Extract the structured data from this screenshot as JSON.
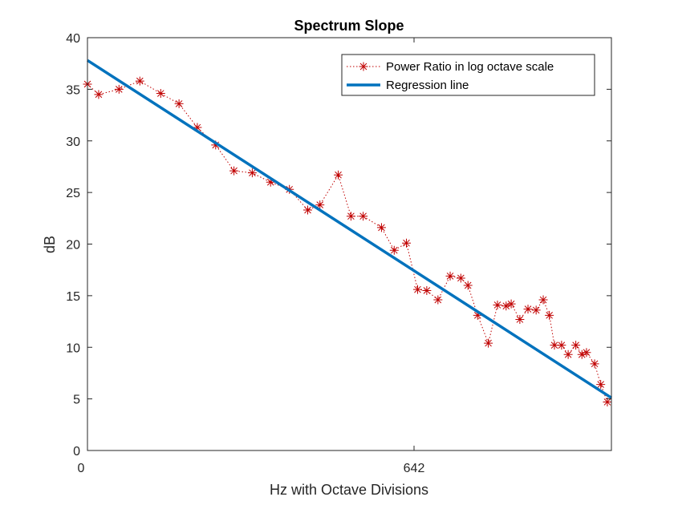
{
  "chart_data": {
    "type": "line",
    "title": "Spectrum Slope",
    "xlabel": "Hz with Octave Divisions",
    "ylabel": "dB",
    "xlim": [
      0,
      1030
    ],
    "ylim": [
      0,
      40
    ],
    "xticks": [
      {
        "value": 0,
        "label": "0"
      },
      {
        "value": 642,
        "label": "642"
      }
    ],
    "yticks": [
      0,
      5,
      10,
      15,
      20,
      25,
      30,
      35,
      40
    ],
    "grid": false,
    "legend_position": "top-right",
    "series": [
      {
        "name": "Power Ratio in log octave scale",
        "style": "dotted-star",
        "color": "#c00000",
        "x": [
          0,
          22,
          62,
          103,
          144,
          180,
          216,
          252,
          288,
          324,
          360,
          397,
          433,
          457,
          493,
          518,
          542,
          578,
          603,
          627,
          649,
          667,
          689,
          713,
          734,
          748,
          767,
          788,
          806,
          823,
          833,
          850,
          866,
          882,
          896,
          908,
          918,
          932,
          945,
          960,
          972,
          981,
          997,
          1009,
          1022
        ],
        "y": [
          35.5,
          34.5,
          35.0,
          35.8,
          34.6,
          33.6,
          31.3,
          29.6,
          27.1,
          26.9,
          26.0,
          25.3,
          23.3,
          23.8,
          26.7,
          22.7,
          22.7,
          21.6,
          19.4,
          20.1,
          15.6,
          15.5,
          14.6,
          16.9,
          16.7,
          16.0,
          13.1,
          10.4,
          14.1,
          14.0,
          14.2,
          12.7,
          13.7,
          13.6,
          14.6,
          13.1,
          10.2,
          10.2,
          9.3,
          10.2,
          9.3,
          9.5,
          8.4,
          6.4,
          4.7
        ]
      },
      {
        "name": "Regression line",
        "style": "solid",
        "color": "#0072bd",
        "x": [
          0,
          1030
        ],
        "y": [
          37.8,
          5.1
        ]
      }
    ]
  }
}
